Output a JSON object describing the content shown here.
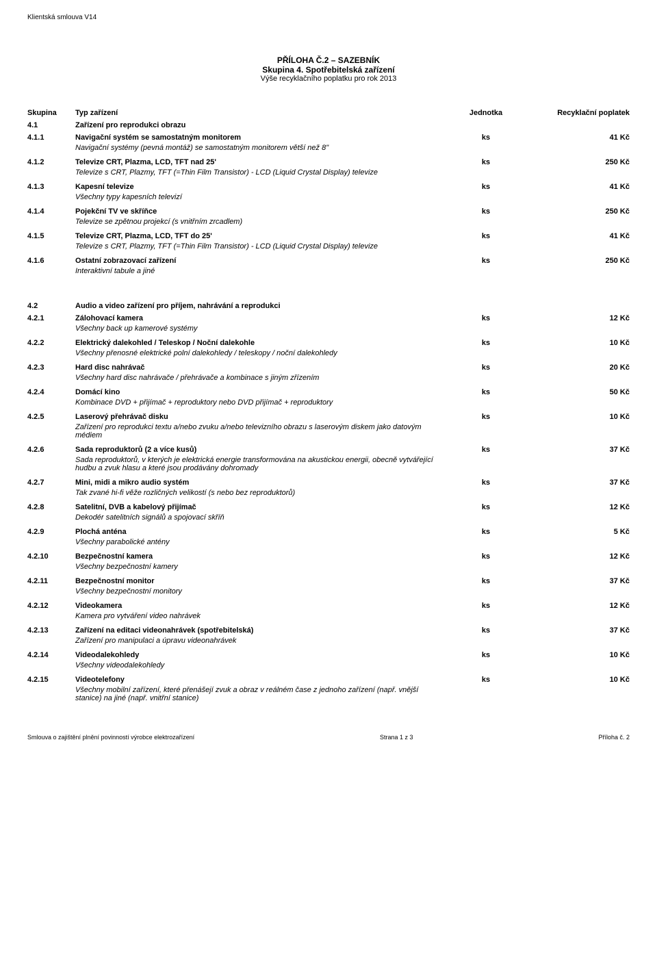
{
  "header_tag": "Klientská smlouva V14",
  "title": {
    "line1": "PŘÍLOHA Č.2 – SAZEBNÍK",
    "line2": "Skupina 4. Spotřebitelská zařízení",
    "line3": "Výše recyklačního poplatku pro rok 2013"
  },
  "columns": {
    "col1": "Skupina",
    "col2": "Typ zařízení",
    "col3": "Jednotka",
    "col4": "Recyklační poplatek"
  },
  "section1": {
    "num": "4.1",
    "name": "Zařízení pro reprodukci obrazu",
    "rows": [
      {
        "num": "4.1.1",
        "name": "Navigační systém se samostatným monitorem",
        "unit": "ks",
        "fee": "41 Kč",
        "desc": "Navigační systémy (pevná montáž) se samostatným monitorem větší než 8\""
      },
      {
        "num": "4.1.2",
        "name": "Televize CRT, Plazma, LCD, TFT nad 25'",
        "unit": "ks",
        "fee": "250 Kč",
        "desc": "Televize s CRT, Plazmy, TFT (=Thin Film Transistor) - LCD (Liquid Crystal Display) televize"
      },
      {
        "num": "4.1.3",
        "name": "Kapesní televize",
        "unit": "ks",
        "fee": "41 Kč",
        "desc": "Všechny typy kapesních televizí"
      },
      {
        "num": "4.1.4",
        "name": "Pojekční TV ve skříňce",
        "unit": "ks",
        "fee": "250 Kč",
        "desc": "Televize se zpětnou projekcí (s vnitřním zrcadlem)"
      },
      {
        "num": "4.1.5",
        "name": "Televize CRT, Plazma, LCD, TFT do 25'",
        "unit": "ks",
        "fee": "41 Kč",
        "desc": "Televize s CRT, Plazmy, TFT (=Thin Film Transistor) - LCD (Liquid Crystal Display) televize"
      },
      {
        "num": "4.1.6",
        "name": "Ostatní zobrazovací zařízení",
        "unit": "ks",
        "fee": "250 Kč",
        "desc": "Interaktivní tabule a jiné"
      }
    ]
  },
  "section2": {
    "num": "4.2",
    "name": "Audio a video zařízení pro příjem, nahrávání a reprodukci",
    "rows": [
      {
        "num": "4.2.1",
        "name": "Zálohovací kamera",
        "unit": "ks",
        "fee": "12 Kč",
        "desc": "Všechny back up kamerové systémy"
      },
      {
        "num": "4.2.2",
        "name": "Elektrický dalekohled / Teleskop / Noční dalekohle",
        "unit": "ks",
        "fee": "10 Kč",
        "desc": "Všechny přenosné elektrické polní dalekohledy / teleskopy / noční dalekohledy"
      },
      {
        "num": "4.2.3",
        "name": "Hard disc nahrávač",
        "unit": "ks",
        "fee": "20 Kč",
        "desc": "Všechny hard disc nahrávače / přehrávače a kombinace s jiným zřízením"
      },
      {
        "num": "4.2.4",
        "name": "Domácí kino",
        "unit": "ks",
        "fee": "50 Kč",
        "desc": "Kombinace DVD + přijímač + reproduktory nebo DVD přijímač + reproduktory"
      },
      {
        "num": "4.2.5",
        "name": "Laserový přehrávač disku",
        "unit": "ks",
        "fee": "10 Kč",
        "desc": "Zařízení pro reprodukci textu a/nebo zvuku a/nebo televizního obrazu s laserovým diskem jako datovým médiem"
      },
      {
        "num": "4.2.6",
        "name": "Sada reproduktorů (2 a více kusů)",
        "unit": "ks",
        "fee": "37 Kč",
        "desc": "Sada reproduktorů, v kterých je elektrická energie transformována na akustickou energii, obecně vytvářející hudbu a zvuk hlasu a které jsou prodávány dohromady"
      },
      {
        "num": "4.2.7",
        "name": "Mini, midi a mikro audio systém",
        "unit": "ks",
        "fee": "37 Kč",
        "desc": "Tak zvané hi-fi věže rozličných velikostí (s nebo bez reproduktorů)"
      },
      {
        "num": "4.2.8",
        "name": "Satelitní, DVB a kabelový přijímač",
        "unit": "ks",
        "fee": "12 Kč",
        "desc": "Dekodér satelitních signálů a spojovací skříň"
      },
      {
        "num": "4.2.9",
        "name": "Plochá anténa",
        "unit": "ks",
        "fee": "5 Kč",
        "desc": "Všechny parabolické antény"
      },
      {
        "num": "4.2.10",
        "name": "Bezpečnostní kamera",
        "unit": "ks",
        "fee": "12 Kč",
        "desc": "Všechny bezpečnostní kamery"
      },
      {
        "num": "4.2.11",
        "name": "Bezpečnostní monitor",
        "unit": "ks",
        "fee": "37 Kč",
        "desc": "Všechny bezpečnostní monitory"
      },
      {
        "num": "4.2.12",
        "name": "Videokamera",
        "unit": "ks",
        "fee": "12 Kč",
        "desc": "Kamera pro vytváření video nahrávek"
      },
      {
        "num": "4.2.13",
        "name": "Zařízení na editaci videonahrávek (spotřebitelská)",
        "unit": "ks",
        "fee": "37 Kč",
        "desc": "Zařízení pro manipulaci a úpravu videonahrávek"
      },
      {
        "num": "4.2.14",
        "name": "Videodalekohledy",
        "unit": "ks",
        "fee": "10 Kč",
        "desc": "Všechny videodalekohledy"
      },
      {
        "num": "4.2.15",
        "name": "Videotelefony",
        "unit": "ks",
        "fee": "10 Kč",
        "desc": "Všechny mobilní zařízení, které přenášejí zvuk a obraz v reálném čase z jednoho zařízení (např. vnější stanice) na jiné (např. vnitřní stanice)"
      }
    ]
  },
  "footer": {
    "left": "Smlouva o zajištění plnění povinností výrobce elektrozařízení",
    "center": "Strana 1 z 3",
    "right": "Příloha č. 2"
  }
}
